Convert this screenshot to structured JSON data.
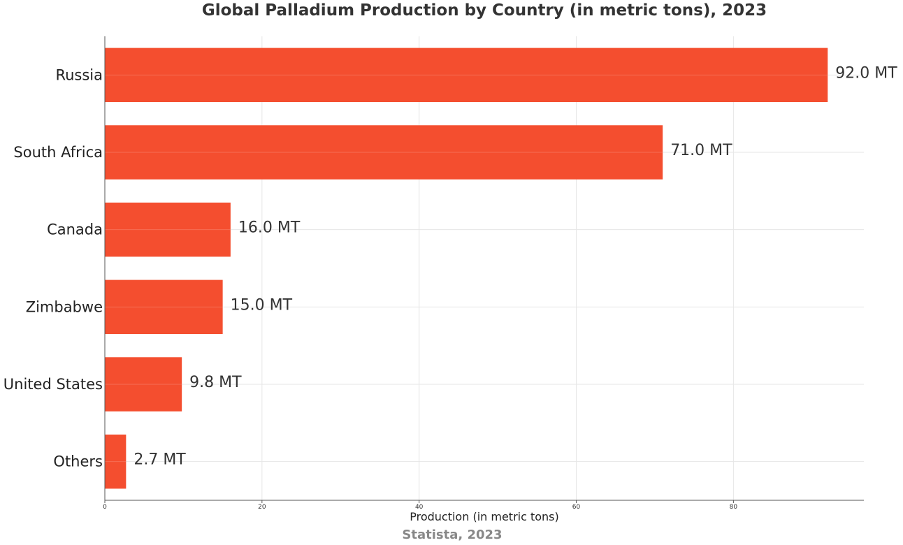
{
  "chart_data": {
    "type": "bar",
    "orientation": "horizontal",
    "title": "Global Palladium Production by Country (in metric tons), 2023",
    "categories": [
      "Russia",
      "South Africa",
      "Canada",
      "Zimbabwe",
      "United States",
      "Others"
    ],
    "values": [
      92.0,
      71.0,
      16.0,
      15.0,
      9.8,
      2.7
    ],
    "data_labels": [
      "92.0 MT",
      "71.0 MT",
      "16.0 MT",
      "15.0 MT",
      "9.8 MT",
      "2.7 MT"
    ],
    "xlabel": "Production (in metric tons)",
    "ylabel": "",
    "xlim": [
      0,
      96.6
    ],
    "xticks": [
      0,
      20,
      40,
      60,
      80
    ],
    "grid": true,
    "source": "Statista, 2023",
    "colors": {
      "bar": "#f44e2f",
      "grid": "#e6e6e6",
      "axis": "#555555"
    }
  }
}
